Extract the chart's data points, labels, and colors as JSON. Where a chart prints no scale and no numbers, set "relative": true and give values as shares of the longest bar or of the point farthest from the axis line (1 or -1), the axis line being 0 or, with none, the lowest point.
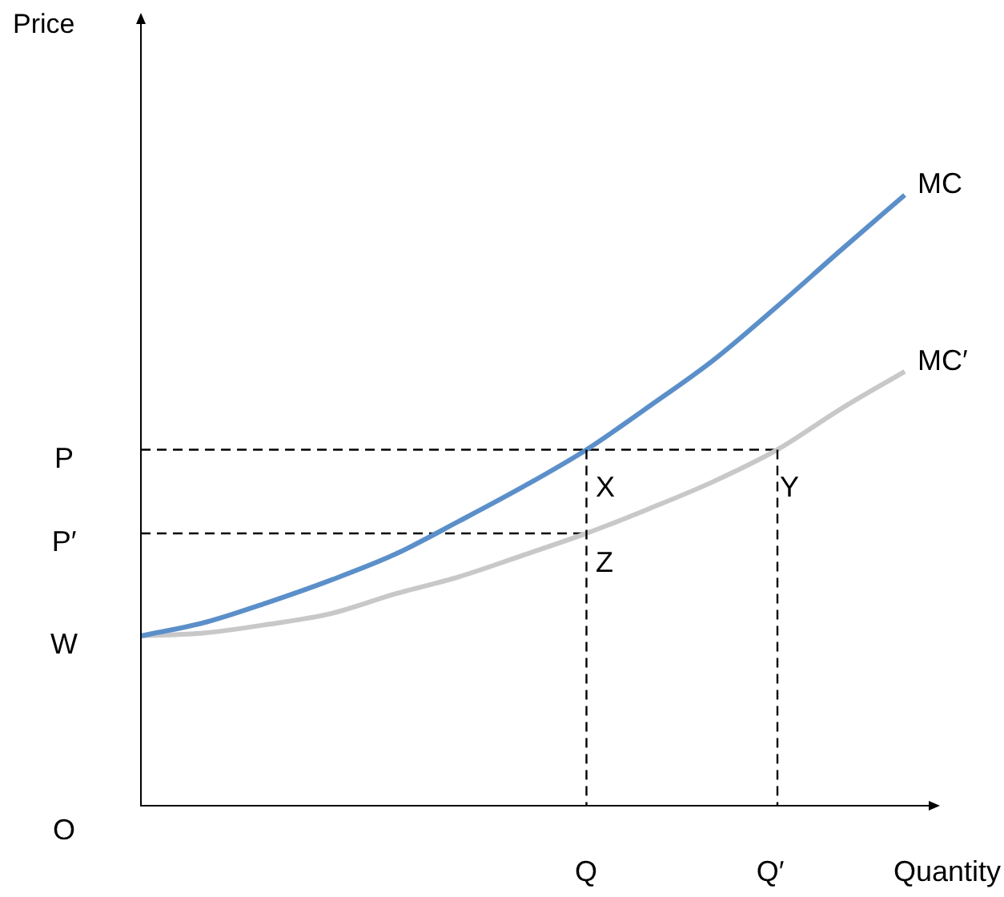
{
  "chart_data": {
    "type": "line",
    "relative": true,
    "xlabel": "Quantity",
    "legend": false,
    "marker": "none",
    "categories": [
      null,
      null,
      null,
      null,
      null,
      null,
      null,
      null,
      null,
      null,
      null,
      null,
      null
    ],
    "series": [
      {
        "name": "MC",
        "color": "#5b8fc9",
        "values": [
          0.278,
          0.3,
          0.333,
          0.37,
          0.412,
          0.466,
          0.522,
          0.583,
          0.655,
          0.73,
          0.818,
          0.91,
          1
        ]
      },
      {
        "name": "MC′",
        "color": "#c8c8c8",
        "values": [
          0.278,
          0.283,
          0.297,
          0.315,
          0.347,
          0.375,
          0.41,
          0.446,
          0.487,
          0.531,
          0.583,
          0.65,
          0.711
        ]
      },
      {
        "color": "#000000",
        "line_style": "dashed",
        "values": [
          0.583,
          0.583,
          0.583,
          0.583,
          0.583,
          0.583,
          0.583,
          0.583,
          0.583,
          0.583,
          0.583,
          null,
          null
        ]
      },
      {
        "color": "#000000",
        "line_style": "dashed",
        "values": [
          0.446,
          0.446,
          0.446,
          0.446,
          0.446,
          0.446,
          0.446,
          0.446,
          null,
          null,
          null,
          null,
          null
        ]
      }
    ],
    "annotations": [
      "Price",
      "P",
      "P′",
      "W",
      "O",
      "X",
      "Z",
      "Y",
      "Q",
      "Q′"
    ]
  }
}
